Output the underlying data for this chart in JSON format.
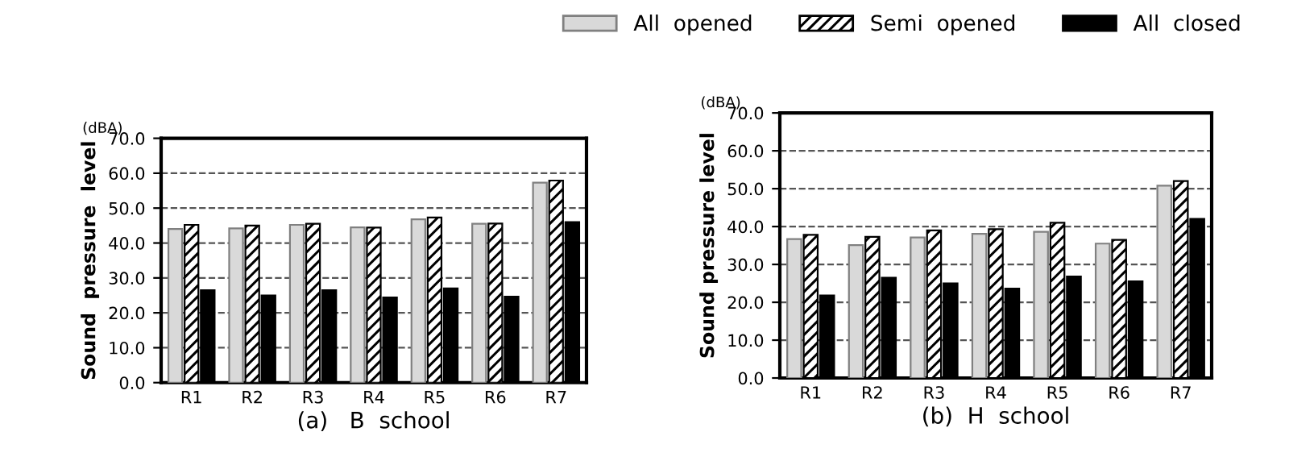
{
  "chart_data": [
    {
      "type": "bar",
      "xlabel": "(a)   B  school",
      "ylabel": "Sound  pressure  level",
      "annotations": [
        "(dBA)"
      ],
      "categories": [
        "R1",
        "R2",
        "R3",
        "R4",
        "R5",
        "R6",
        "R7"
      ],
      "series": [
        {
          "color": "#d9d9d9",
          "values": [
            44.0,
            44.2,
            45.2,
            44.5,
            46.8,
            45.5,
            57.3
          ]
        },
        {
          "color": "#000000",
          "values": [
            45.2,
            45.0,
            45.5,
            44.4,
            47.3,
            45.6,
            57.9
          ]
        },
        {
          "color": "#000000",
          "values": [
            26.5,
            25.0,
            26.5,
            24.4,
            27.0,
            24.6,
            46.0
          ]
        }
      ],
      "ylim": [
        0,
        70
      ],
      "yticks": [
        {
          "value": 0,
          "label": "0.0"
        },
        {
          "value": 10,
          "label": "10.0"
        },
        {
          "value": 20,
          "label": "20.0"
        },
        {
          "value": 30,
          "label": "30.0"
        },
        {
          "value": 40,
          "label": "40.0"
        },
        {
          "value": 50,
          "label": "50.0"
        },
        {
          "value": 60,
          "label": "60.0"
        },
        {
          "value": 70,
          "label": "70.0"
        }
      ],
      "grid": "y",
      "legend": false
    },
    {
      "type": "bar",
      "xlabel": "(b)  H  school",
      "ylabel": "Sound pressure level",
      "annotations": [
        "(dBA)"
      ],
      "categories": [
        "R1",
        "R2",
        "R3",
        "R4",
        "R5",
        "R6",
        "R7"
      ],
      "series": [
        {
          "name": "All  opened",
          "color": "#d9d9d9",
          "values": [
            36.7,
            35.1,
            37.1,
            38.1,
            38.6,
            35.5,
            50.8
          ]
        },
        {
          "name": "Semi  opened",
          "color": "#000000",
          "values": [
            37.8,
            37.3,
            39.0,
            39.3,
            41.0,
            36.5,
            52.0
          ]
        },
        {
          "name": "All  closed",
          "color": "#000000",
          "values": [
            21.8,
            26.5,
            25.0,
            23.6,
            26.8,
            25.5,
            42.0
          ]
        }
      ],
      "ylim": [
        0,
        70
      ],
      "yticks": [
        {
          "value": 0,
          "label": "0.0"
        },
        {
          "value": 10,
          "label": "10.0"
        },
        {
          "value": 20,
          "label": "20.0"
        },
        {
          "value": 30,
          "label": "30.0"
        },
        {
          "value": 40,
          "label": "40.0"
        },
        {
          "value": 50,
          "label": "50.0"
        },
        {
          "value": 60,
          "label": "60.0"
        },
        {
          "value": 70,
          "label": "70.0"
        }
      ],
      "grid": "y",
      "legend": "top"
    }
  ]
}
